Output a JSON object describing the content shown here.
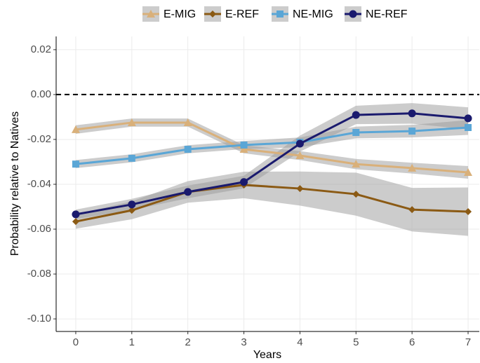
{
  "chart_data": {
    "type": "line",
    "x_label": "Years",
    "y_label": "Probability relative to Natives",
    "x": [
      0,
      1,
      2,
      3,
      4,
      5,
      6,
      7
    ],
    "xlim": [
      -0.35,
      7.2
    ],
    "xticks": [
      0,
      1,
      2,
      3,
      4,
      5,
      6,
      7
    ],
    "ylim": [
      -0.1056,
      0.0259
    ],
    "yticks": [
      {
        "value": -0.1,
        "label": "-0.10"
      },
      {
        "value": -0.08,
        "label": "-0.08"
      },
      {
        "value": -0.06,
        "label": "-0.06"
      },
      {
        "value": -0.04,
        "label": "-0.04"
      },
      {
        "value": -0.02,
        "label": "-0.02"
      },
      {
        "value": 0,
        "label": "0.00"
      },
      {
        "value": 0.02,
        "label": "0.02"
      }
    ],
    "grid": true,
    "hline": 0,
    "band_color": "#999999",
    "legend_position": "top",
    "series": [
      {
        "name": "E-MIG",
        "color": "#d9b07a",
        "marker": "triangle",
        "values": [
          -0.0156,
          -0.0125,
          -0.0125,
          -0.0244,
          -0.0272,
          -0.031,
          -0.0328,
          -0.0347
        ],
        "lower": [
          -0.0175,
          -0.0143,
          -0.0143,
          -0.0262,
          -0.0292,
          -0.0333,
          -0.0352,
          -0.0375
        ],
        "upper": [
          -0.0137,
          -0.0107,
          -0.0107,
          -0.0226,
          -0.0252,
          -0.0287,
          -0.0304,
          -0.0319
        ]
      },
      {
        "name": "E-REF",
        "color": "#8b5a14",
        "marker": "diamond",
        "values": [
          -0.0566,
          -0.0516,
          -0.0434,
          -0.0403,
          -0.0419,
          -0.0444,
          -0.0513,
          -0.0522
        ],
        "lower": [
          -0.0598,
          -0.0556,
          -0.0482,
          -0.0462,
          -0.0495,
          -0.054,
          -0.061,
          -0.063
        ],
        "upper": [
          -0.0534,
          -0.0476,
          -0.0386,
          -0.0344,
          -0.0343,
          -0.0348,
          -0.0416,
          -0.0414
        ]
      },
      {
        "name": "NE-MIG",
        "color": "#5aa6d6",
        "marker": "square",
        "values": [
          -0.031,
          -0.0284,
          -0.0244,
          -0.0225,
          -0.0213,
          -0.0169,
          -0.0163,
          -0.0147
        ],
        "lower": [
          -0.0328,
          -0.0302,
          -0.0262,
          -0.0243,
          -0.0235,
          -0.0195,
          -0.0191,
          -0.018
        ],
        "upper": [
          -0.0292,
          -0.0266,
          -0.0226,
          -0.0207,
          -0.0191,
          -0.0143,
          -0.0135,
          -0.0114
        ]
      },
      {
        "name": "NE-REF",
        "color": "#1a1a6e",
        "marker": "circle",
        "values": [
          -0.0534,
          -0.049,
          -0.0434,
          -0.039,
          -0.0219,
          -0.0091,
          -0.0084,
          -0.0106
        ],
        "lower": [
          -0.0555,
          -0.0515,
          -0.0462,
          -0.0418,
          -0.0255,
          -0.0132,
          -0.013,
          -0.0155
        ],
        "upper": [
          -0.0513,
          -0.0465,
          -0.0406,
          -0.0362,
          -0.0183,
          -0.005,
          -0.0038,
          -0.0057
        ]
      }
    ]
  }
}
